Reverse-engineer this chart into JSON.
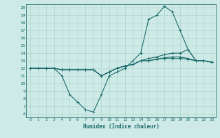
{
  "title": "",
  "xlabel": "Humidex (Indice chaleur)",
  "bg_color": "#ceeae6",
  "line_color": "#1a6b6b",
  "grid_color": "#aed4cf",
  "xlim": [
    -0.5,
    23.5
  ],
  "ylim": [
    5.5,
    20.5
  ],
  "yticks": [
    6,
    7,
    8,
    9,
    10,
    11,
    12,
    13,
    14,
    15,
    16,
    17,
    18,
    19,
    20
  ],
  "xticks": [
    0,
    1,
    2,
    3,
    4,
    5,
    6,
    7,
    8,
    9,
    10,
    11,
    12,
    13,
    14,
    15,
    16,
    17,
    18,
    19,
    20,
    21,
    22,
    23
  ],
  "lines": [
    {
      "x": [
        0,
        1,
        2,
        3,
        4,
        5,
        6,
        7,
        8,
        9,
        10,
        11,
        12,
        13,
        14,
        15,
        16,
        17,
        18,
        19,
        20,
        21,
        22,
        23
      ],
      "y": [
        12,
        12,
        12,
        12,
        11,
        8.5,
        7.5,
        6.5,
        6.2,
        8.5,
        11,
        11.5,
        12,
        13,
        14,
        18.5,
        19,
        20.2,
        19.5,
        17,
        14.5,
        13,
        13,
        12.8
      ]
    },
    {
      "x": [
        0,
        1,
        2,
        3,
        4,
        5,
        6,
        7,
        8,
        9,
        10,
        11,
        12,
        13,
        14,
        15,
        16,
        17,
        18,
        19,
        20,
        21,
        22,
        23
      ],
      "y": [
        12,
        12,
        12,
        12,
        11.8,
        11.8,
        11.8,
        11.8,
        11.8,
        11,
        11.5,
        12,
        12.3,
        12.5,
        13,
        13.3,
        13.5,
        13.8,
        14,
        14,
        14.5,
        13,
        13,
        12.8
      ]
    },
    {
      "x": [
        0,
        1,
        2,
        3,
        4,
        5,
        6,
        7,
        8,
        9,
        10,
        11,
        12,
        13,
        14,
        15,
        16,
        17,
        18,
        19,
        20,
        21,
        22,
        23
      ],
      "y": [
        12,
        12,
        12,
        12,
        11.8,
        11.8,
        11.8,
        11.8,
        11.8,
        11,
        11.5,
        12,
        12.3,
        12.5,
        13,
        13.0,
        13.2,
        13.4,
        13.5,
        13.5,
        13.3,
        13,
        13,
        12.8
      ]
    },
    {
      "x": [
        0,
        1,
        2,
        3,
        4,
        5,
        6,
        7,
        8,
        9,
        10,
        11,
        12,
        13,
        14,
        15,
        16,
        17,
        18,
        19,
        20,
        21,
        22,
        23
      ],
      "y": [
        12,
        12,
        12,
        12,
        11.8,
        11.8,
        11.8,
        11.8,
        11.8,
        11,
        11.5,
        12,
        12.3,
        12.5,
        13,
        13.0,
        13.2,
        13.3,
        13.3,
        13.3,
        13.2,
        13,
        13,
        12.8
      ]
    }
  ]
}
